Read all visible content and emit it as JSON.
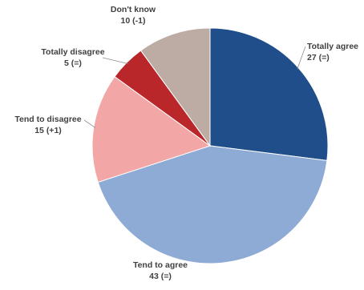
{
  "chart_data": {
    "type": "pie",
    "title": "",
    "slices": [
      {
        "name": "Totally agree",
        "value": 27,
        "change": "27 (=)",
        "color": "#1f4e8a"
      },
      {
        "name": "Tend to agree",
        "value": 43,
        "change": "43 (=)",
        "color": "#8eabd6"
      },
      {
        "name": "Tend to disagree",
        "value": 15,
        "change": "15 (+1)",
        "color": "#f2a6a6"
      },
      {
        "name": "Totally disagree",
        "value": 5,
        "change": "5 (=)",
        "color": "#b9272b"
      },
      {
        "name": "Don't know",
        "value": 10,
        "change": "10 (-1)",
        "color": "#bcaca3"
      }
    ],
    "start_angle_deg": 0,
    "direction": "clockwise",
    "legend": "none",
    "data_labels": "outside with leader lines"
  }
}
